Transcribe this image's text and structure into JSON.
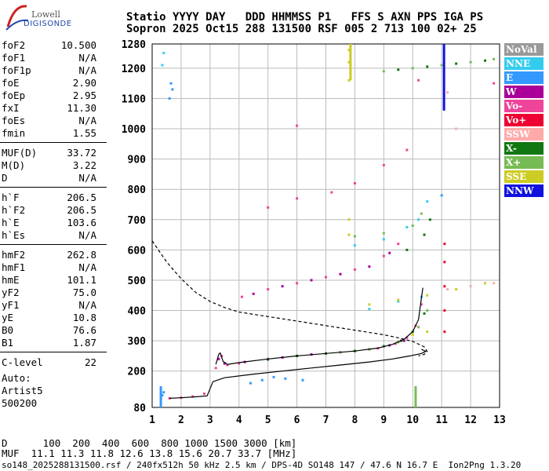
{
  "logo": {
    "line1": "Lowell",
    "line2": "DIGISONDE"
  },
  "header": {
    "line1": "Statio YYYY DAY   DDD HHMMSS P1   FFS S AXN PPS IGA PS",
    "line2": "Sopron 2025 Oct15 288 131500 RSF 005 2 713 100 02+ 25"
  },
  "params": {
    "group1": [
      {
        "k": "foF2",
        "v": "10.500"
      },
      {
        "k": "foF1",
        "v": "N/A"
      },
      {
        "k": "foF1p",
        "v": "N/A"
      },
      {
        "k": "foE",
        "v": "2.90"
      },
      {
        "k": "foEp",
        "v": "2.95"
      },
      {
        "k": "fxI",
        "v": "11.30"
      },
      {
        "k": "foEs",
        "v": "N/A"
      },
      {
        "k": "fmin",
        "v": "1.55"
      }
    ],
    "group2": [
      {
        "k": "MUF(D)",
        "v": "33.72"
      },
      {
        "k": "M(D)",
        "v": "3.22"
      },
      {
        "k": "D",
        "v": "N/A"
      }
    ],
    "group3": [
      {
        "k": "h`F",
        "v": "206.5"
      },
      {
        "k": "h`F2",
        "v": "206.5"
      },
      {
        "k": "h`E",
        "v": "103.6"
      },
      {
        "k": "h`Es",
        "v": "N/A"
      }
    ],
    "group4": [
      {
        "k": "hmF2",
        "v": "262.8"
      },
      {
        "k": "hmF1",
        "v": "N/A"
      },
      {
        "k": "hmE",
        "v": "101.1"
      },
      {
        "k": "yF2",
        "v": "75.0"
      },
      {
        "k": "yF1",
        "v": "N/A"
      },
      {
        "k": "yE",
        "v": "10.8"
      },
      {
        "k": "B0",
        "v": "76.6"
      },
      {
        "k": "B1",
        "v": "1.87"
      }
    ],
    "group5": [
      {
        "k": "C-level",
        "v": "22"
      }
    ]
  },
  "auto": {
    "l1": "Auto:",
    "l2": "Artist5",
    "l3": "500200"
  },
  "footer": {
    "d_row": "D      100  200  400  600  800 1000 1500 3000 [km]",
    "muf_row": "MUF  11.1 11.3 11.8 12.6 13.8 15.6 20.7 33.7 [MHz]",
    "file_row": "so148_2025288131500.rsf / 240fx512h 50 kHz 2.5 km / DPS-4D SO148 147 / 47.6 N 16.7 E  Ion2Png 1.3.20"
  },
  "legend": [
    {
      "label": "NoVal",
      "color": "#999999"
    },
    {
      "label": "NNE",
      "color": "#33ccee"
    },
    {
      "label": "E",
      "color": "#3399ff"
    },
    {
      "label": "W",
      "color": "#aa0099"
    },
    {
      "label": "Vo-",
      "color": "#ee4499"
    },
    {
      "label": "Vo+",
      "color": "#ee0033"
    },
    {
      "label": "SSW",
      "color": "#ffaaaa"
    },
    {
      "label": "X-",
      "color": "#117711"
    },
    {
      "label": "X+",
      "color": "#77bb55"
    },
    {
      "label": "SSE",
      "color": "#cccc22"
    },
    {
      "label": "NNW",
      "color": "#1111dd"
    }
  ],
  "chart_data": {
    "type": "scatter",
    "x_ticks": [
      1,
      2,
      3,
      4,
      5,
      6,
      7,
      8,
      9,
      10,
      11,
      12,
      13
    ],
    "y_ticks": [
      80,
      200,
      300,
      400,
      500,
      600,
      700,
      800,
      900,
      1000,
      1100,
      1200,
      1280
    ],
    "xlim": [
      1,
      13
    ],
    "ylim": [
      80,
      1280
    ],
    "grid": true,
    "legend_position": "right",
    "series": [
      {
        "color": "#ee4499",
        "points": [
          [
            1.6,
            110
          ],
          [
            2.0,
            112
          ],
          [
            2.4,
            116
          ],
          [
            2.8,
            125
          ],
          [
            3.2,
            210
          ],
          [
            3.4,
            250
          ],
          [
            3.6,
            220
          ],
          [
            4.0,
            225
          ],
          [
            5.0,
            240
          ],
          [
            6.0,
            250
          ],
          [
            7.0,
            258
          ],
          [
            8.0,
            266
          ],
          [
            8.8,
            275
          ],
          [
            9.4,
            290
          ],
          [
            9.8,
            310
          ],
          [
            10.1,
            350
          ],
          [
            10.3,
            420
          ],
          [
            4.1,
            445
          ],
          [
            5.0,
            470
          ],
          [
            6.0,
            490
          ],
          [
            7.0,
            510
          ],
          [
            8.0,
            535
          ],
          [
            9.0,
            580
          ],
          [
            9.5,
            620
          ],
          [
            5.0,
            740
          ],
          [
            6.0,
            770
          ],
          [
            7.2,
            790
          ],
          [
            8.0,
            820
          ],
          [
            9.0,
            880
          ],
          [
            9.8,
            930
          ],
          [
            6.0,
            1010
          ],
          [
            10.2,
            1160
          ],
          [
            12.8,
            1150
          ]
        ]
      },
      {
        "color": "#aa0099",
        "points": [
          [
            3.3,
            240
          ],
          [
            3.5,
            225
          ],
          [
            4.2,
            230
          ],
          [
            5.5,
            245
          ],
          [
            6.5,
            255
          ],
          [
            7.5,
            262
          ],
          [
            8.5,
            272
          ],
          [
            9.2,
            285
          ],
          [
            9.7,
            300
          ],
          [
            4.5,
            455
          ],
          [
            5.5,
            480
          ],
          [
            6.5,
            500
          ],
          [
            7.5,
            520
          ],
          [
            8.5,
            545
          ],
          [
            9.2,
            590
          ]
        ]
      },
      {
        "color": "#117711",
        "points": [
          [
            5.0,
            238
          ],
          [
            6.0,
            250
          ],
          [
            7.0,
            258
          ],
          [
            8.0,
            266
          ],
          [
            9.0,
            282
          ],
          [
            9.6,
            300
          ],
          [
            10.0,
            330
          ],
          [
            10.4,
            390
          ],
          [
            9.8,
            600
          ],
          [
            10.4,
            650
          ],
          [
            10.6,
            700
          ],
          [
            9.5,
            1195
          ],
          [
            10.5,
            1205
          ],
          [
            11.5,
            1215
          ],
          [
            12.5,
            1225
          ]
        ]
      },
      {
        "color": "#77bb55",
        "points": [
          [
            7.5,
            262
          ],
          [
            8.5,
            272
          ],
          [
            9.5,
            295
          ],
          [
            10.2,
            345
          ],
          [
            10.5,
            400
          ],
          [
            8.0,
            645
          ],
          [
            9.0,
            655
          ],
          [
            10.0,
            680
          ],
          [
            10.3,
            720
          ],
          [
            9.0,
            1190
          ],
          [
            10.0,
            1200
          ],
          [
            11.0,
            1210
          ],
          [
            12.0,
            1220
          ],
          [
            12.8,
            1230
          ]
        ]
      },
      {
        "color": "#33ccee",
        "points": [
          [
            8.0,
            615
          ],
          [
            9.0,
            635
          ],
          [
            9.8,
            675
          ],
          [
            10.2,
            700
          ],
          [
            10.5,
            760
          ],
          [
            8.5,
            405
          ],
          [
            9.5,
            430
          ],
          [
            10.3,
            445
          ],
          [
            1.4,
            1250
          ],
          [
            1.35,
            1210
          ]
        ]
      },
      {
        "color": "#3399ff",
        "points": [
          [
            1.3,
            110
          ],
          [
            1.35,
            120
          ],
          [
            1.4,
            130
          ],
          [
            4.4,
            160
          ],
          [
            4.8,
            170
          ],
          [
            5.2,
            180
          ],
          [
            5.6,
            175
          ],
          [
            6.2,
            170
          ],
          [
            1.6,
            1100
          ],
          [
            1.65,
            1150
          ],
          [
            1.7,
            1130
          ],
          [
            11.0,
            780
          ]
        ]
      },
      {
        "color": "#cccc22",
        "points": [
          [
            7.8,
            1220
          ],
          [
            7.8,
            1260
          ],
          [
            7.8,
            1160
          ],
          [
            7.8,
            650
          ],
          [
            7.8,
            700
          ],
          [
            8.5,
            420
          ],
          [
            9.5,
            435
          ],
          [
            10.5,
            450
          ],
          [
            11.5,
            470
          ],
          [
            12.5,
            490
          ],
          [
            10.0,
            320
          ],
          [
            10.5,
            330
          ]
        ]
      },
      {
        "color": "#ffaaaa",
        "points": [
          [
            11.2,
            470
          ],
          [
            12.0,
            480
          ],
          [
            12.8,
            490
          ],
          [
            11.2,
            1120
          ],
          [
            11.5,
            1000
          ]
        ]
      },
      {
        "color": "#ee0033",
        "points": [
          [
            11.1,
            330
          ],
          [
            11.1,
            400
          ],
          [
            11.1,
            480
          ],
          [
            11.1,
            560
          ],
          [
            11.1,
            620
          ]
        ]
      }
    ],
    "lines": [
      {
        "style": "solid",
        "color": "#000000",
        "points": [
          [
            1.6,
            110
          ],
          [
            2.0,
            112
          ],
          [
            2.5,
            115
          ],
          [
            2.9,
            118
          ],
          [
            3.1,
            165
          ],
          [
            3.5,
            178
          ],
          [
            4.5,
            190
          ],
          [
            5.5,
            200
          ],
          [
            6.5,
            210
          ],
          [
            7.5,
            220
          ],
          [
            8.5,
            230
          ],
          [
            9.3,
            240
          ],
          [
            9.9,
            250
          ],
          [
            10.3,
            258
          ],
          [
            10.45,
            265
          ],
          [
            10.3,
            272
          ]
        ]
      },
      {
        "style": "solid",
        "color": "#000000",
        "points": [
          [
            3.2,
            222
          ],
          [
            3.3,
            255
          ],
          [
            3.35,
            260
          ],
          [
            3.45,
            232
          ],
          [
            3.6,
            222
          ],
          [
            4.0,
            228
          ],
          [
            5.0,
            240
          ],
          [
            6.0,
            250
          ],
          [
            7.0,
            258
          ],
          [
            8.0,
            266
          ],
          [
            8.8,
            276
          ],
          [
            9.3,
            288
          ],
          [
            9.7,
            305
          ],
          [
            10.0,
            330
          ],
          [
            10.2,
            370
          ],
          [
            10.3,
            440
          ],
          [
            10.35,
            475
          ]
        ]
      },
      {
        "style": "dashed",
        "color": "#000000",
        "points": [
          [
            1.0,
            630
          ],
          [
            1.5,
            560
          ],
          [
            2.0,
            505
          ],
          [
            2.5,
            460
          ],
          [
            3.0,
            430
          ],
          [
            3.5,
            410
          ],
          [
            4.0,
            395
          ],
          [
            5.0,
            380
          ],
          [
            6.0,
            365
          ],
          [
            7.0,
            350
          ],
          [
            8.0,
            335
          ],
          [
            9.0,
            320
          ],
          [
            9.5,
            310
          ],
          [
            10.0,
            298
          ],
          [
            10.4,
            280
          ],
          [
            10.5,
            265
          ],
          [
            10.4,
            255
          ],
          [
            10.2,
            250
          ]
        ]
      }
    ],
    "vertical_bars": [
      {
        "x": 11.08,
        "y": [
          1060,
          1280
        ],
        "color": "#1111dd"
      },
      {
        "x": 7.85,
        "y": [
          1160,
          1280
        ],
        "color": "#cccc22"
      },
      {
        "x": 10.1,
        "y": [
          80,
          150
        ],
        "color": "#77bb55"
      },
      {
        "x": 1.3,
        "y": [
          80,
          150
        ],
        "color": "#3399ff"
      }
    ]
  }
}
